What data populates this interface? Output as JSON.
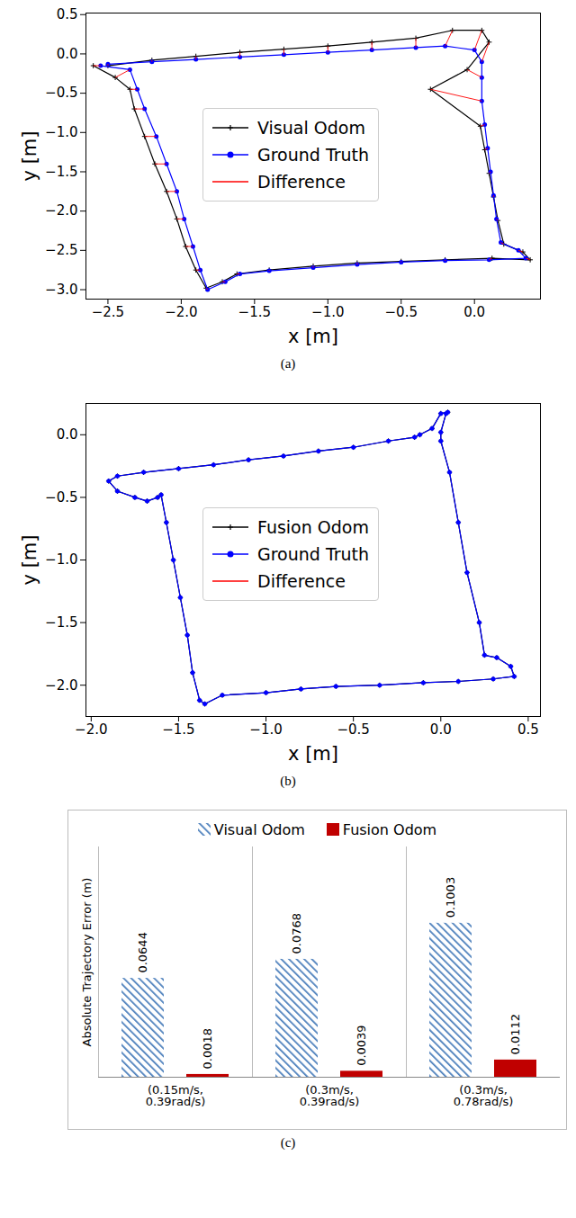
{
  "chart_data": [
    {
      "type": "line",
      "caption": "(a)",
      "xlabel": "x [m]",
      "ylabel": "y [m]",
      "xlim": [
        -2.65,
        0.45
      ],
      "ylim": [
        -3.12,
        0.52
      ],
      "xticks": [
        {
          "value": -2.5,
          "label": "−2.5"
        },
        {
          "value": -2.0,
          "label": "−2.0"
        },
        {
          "value": -1.5,
          "label": "−1.5"
        },
        {
          "value": -1.0,
          "label": "−1.0"
        },
        {
          "value": -0.5,
          "label": "−0.5"
        },
        {
          "value": 0,
          "label": "0.0"
        }
      ],
      "yticks": [
        {
          "value": -3.0,
          "label": "−3.0"
        },
        {
          "value": -2.5,
          "label": "−2.5"
        },
        {
          "value": -2.0,
          "label": "−2.0"
        },
        {
          "value": -1.5,
          "label": "−1.5"
        },
        {
          "value": -1.0,
          "label": "−1.0"
        },
        {
          "value": -0.5,
          "label": "−0.5"
        },
        {
          "value": 0,
          "label": "0.0"
        },
        {
          "value": 0.5,
          "label": "0.5"
        }
      ],
      "legend": "center",
      "series": [
        {
          "name": "Visual Odom",
          "color": "#000000",
          "marker": "plus",
          "x": [
            -2.5,
            -2.2,
            -1.9,
            -1.6,
            -1.3,
            -1.0,
            -0.7,
            -0.4,
            -0.15,
            0.05,
            0.1,
            -0.05,
            -0.3,
            0.04,
            0.07,
            0.1,
            0.13,
            0.16,
            0.2,
            0.33,
            0.38,
            0.12,
            -0.2,
            -0.5,
            -0.8,
            -1.1,
            -1.4,
            -1.62,
            -1.72,
            -1.83,
            -1.9,
            -1.97,
            -2.03,
            -2.1,
            -2.18,
            -2.25,
            -2.32,
            -2.35,
            -2.45,
            -2.6
          ],
          "y": [
            -0.15,
            -0.08,
            -0.03,
            0.02,
            0.06,
            0.1,
            0.15,
            0.2,
            0.3,
            0.3,
            0.15,
            -0.2,
            -0.45,
            -0.92,
            -1.22,
            -1.52,
            -1.82,
            -2.12,
            -2.42,
            -2.52,
            -2.62,
            -2.6,
            -2.62,
            -2.64,
            -2.66,
            -2.7,
            -2.75,
            -2.8,
            -2.9,
            -2.98,
            -2.75,
            -2.45,
            -2.1,
            -1.75,
            -1.4,
            -1.05,
            -0.7,
            -0.45,
            -0.3,
            -0.15
          ]
        },
        {
          "name": "Ground Truth",
          "color": "#0000ff",
          "marker": "dot",
          "x": [
            -2.5,
            -2.2,
            -1.9,
            -1.6,
            -1.3,
            -1.0,
            -0.7,
            -0.4,
            -0.2,
            0.0,
            0.05,
            0.05,
            0.05,
            0.07,
            0.09,
            0.11,
            0.13,
            0.15,
            0.18,
            0.3,
            0.35,
            0.1,
            -0.2,
            -0.5,
            -0.8,
            -1.1,
            -1.4,
            -1.6,
            -1.7,
            -1.82,
            -1.87,
            -1.92,
            -1.98,
            -2.03,
            -2.1,
            -2.17,
            -2.25,
            -2.3,
            -2.35,
            -2.55
          ],
          "y": [
            -0.13,
            -0.1,
            -0.07,
            -0.04,
            -0.01,
            0.02,
            0.05,
            0.08,
            0.1,
            0.05,
            -0.1,
            -0.3,
            -0.6,
            -0.9,
            -1.2,
            -1.5,
            -1.8,
            -2.1,
            -2.4,
            -2.5,
            -2.6,
            -2.62,
            -2.63,
            -2.65,
            -2.68,
            -2.72,
            -2.76,
            -2.8,
            -2.9,
            -3.0,
            -2.75,
            -2.45,
            -2.1,
            -1.75,
            -1.4,
            -1.05,
            -0.7,
            -0.45,
            -0.2,
            -0.15
          ]
        },
        {
          "name": "Difference",
          "color": "#ff0000",
          "type": "link"
        }
      ]
    },
    {
      "type": "line",
      "caption": "(b)",
      "xlabel": "x [m]",
      "ylabel": "y [m]",
      "xlim": [
        -2.03,
        0.57
      ],
      "ylim": [
        -2.25,
        0.25
      ],
      "xticks": [
        {
          "value": -2.0,
          "label": "−2.0"
        },
        {
          "value": -1.5,
          "label": "−1.5"
        },
        {
          "value": -1.0,
          "label": "−1.0"
        },
        {
          "value": -0.5,
          "label": "−0.5"
        },
        {
          "value": 0,
          "label": "0.0"
        },
        {
          "value": 0.5,
          "label": "0.5"
        }
      ],
      "yticks": [
        {
          "value": -2.0,
          "label": "−2.0"
        },
        {
          "value": -1.5,
          "label": "−1.5"
        },
        {
          "value": -1.0,
          "label": "−1.0"
        },
        {
          "value": -0.5,
          "label": "−0.5"
        },
        {
          "value": 0,
          "label": "0.0"
        }
      ],
      "legend": "center",
      "series": [
        {
          "name": "Fusion Odom",
          "color": "#000000",
          "marker": "plus",
          "x": [
            0.04,
            0.0,
            -0.05,
            -0.12,
            -0.15,
            -0.3,
            -0.5,
            -0.7,
            -0.9,
            -1.1,
            -1.3,
            -1.5,
            -1.7,
            -1.85,
            -1.9,
            -1.85,
            -1.75,
            -1.68,
            -1.62,
            -1.6,
            -1.57,
            -1.53,
            -1.49,
            -1.45,
            -1.42,
            -1.38,
            -1.35,
            -1.25,
            -1.0,
            -0.8,
            -0.6,
            -0.35,
            -0.1,
            0.1,
            0.3,
            0.42,
            0.4,
            0.32,
            0.25,
            0.22,
            0.15,
            0.1,
            0.05,
            0.0,
            0.0,
            0.03
          ],
          "y": [
            0.18,
            0.17,
            0.05,
            0.0,
            -0.02,
            -0.05,
            -0.1,
            -0.13,
            -0.17,
            -0.2,
            -0.24,
            -0.27,
            -0.3,
            -0.33,
            -0.37,
            -0.45,
            -0.5,
            -0.53,
            -0.5,
            -0.48,
            -0.7,
            -1.0,
            -1.3,
            -1.6,
            -1.9,
            -2.12,
            -2.15,
            -2.08,
            -2.06,
            -2.03,
            -2.01,
            -2.0,
            -1.98,
            -1.97,
            -1.95,
            -1.93,
            -1.85,
            -1.78,
            -1.76,
            -1.5,
            -1.1,
            -0.7,
            -0.3,
            -0.05,
            0.02,
            0.17
          ]
        },
        {
          "name": "Ground Truth",
          "color": "#0000ff",
          "marker": "dot",
          "x": [
            0.04,
            0.0,
            -0.05,
            -0.12,
            -0.15,
            -0.3,
            -0.5,
            -0.7,
            -0.9,
            -1.1,
            -1.3,
            -1.5,
            -1.7,
            -1.85,
            -1.9,
            -1.85,
            -1.75,
            -1.68,
            -1.62,
            -1.6,
            -1.57,
            -1.53,
            -1.49,
            -1.45,
            -1.42,
            -1.38,
            -1.35,
            -1.25,
            -1.0,
            -0.8,
            -0.6,
            -0.35,
            -0.1,
            0.1,
            0.3,
            0.42,
            0.4,
            0.32,
            0.25,
            0.22,
            0.15,
            0.1,
            0.05,
            0.0,
            0.0,
            0.03
          ],
          "y": [
            0.18,
            0.17,
            0.05,
            0.0,
            -0.02,
            -0.05,
            -0.1,
            -0.13,
            -0.17,
            -0.2,
            -0.24,
            -0.27,
            -0.3,
            -0.33,
            -0.37,
            -0.45,
            -0.5,
            -0.53,
            -0.5,
            -0.48,
            -0.7,
            -1.0,
            -1.3,
            -1.6,
            -1.9,
            -2.12,
            -2.15,
            -2.08,
            -2.06,
            -2.03,
            -2.01,
            -2.0,
            -1.98,
            -1.97,
            -1.95,
            -1.93,
            -1.85,
            -1.78,
            -1.76,
            -1.5,
            -1.1,
            -0.7,
            -0.3,
            -0.05,
            0.02,
            0.17
          ]
        },
        {
          "name": "Difference",
          "color": "#ff0000",
          "type": "link"
        }
      ]
    },
    {
      "type": "bar",
      "caption": "(c)",
      "ylabel": "Absolute Trajectory Error (m)",
      "categories": [
        "(0.15m/s,\n0.39rad/s)",
        "(0.3m/s,\n0.39rad/s)",
        "(0.3m/s,\n0.78rad/s)"
      ],
      "ylim": [
        0,
        0.15
      ],
      "tick_labels": "x",
      "data_labels": true,
      "legend": "top",
      "series": [
        {
          "name": "Visual Odom",
          "color": "#4a7ebb",
          "values": [
            0.0644,
            0.0768,
            0.1003
          ]
        },
        {
          "name": "Fusion Odom",
          "color": "#c00000",
          "values": [
            0.0018,
            0.0039,
            0.0112
          ]
        }
      ]
    }
  ]
}
